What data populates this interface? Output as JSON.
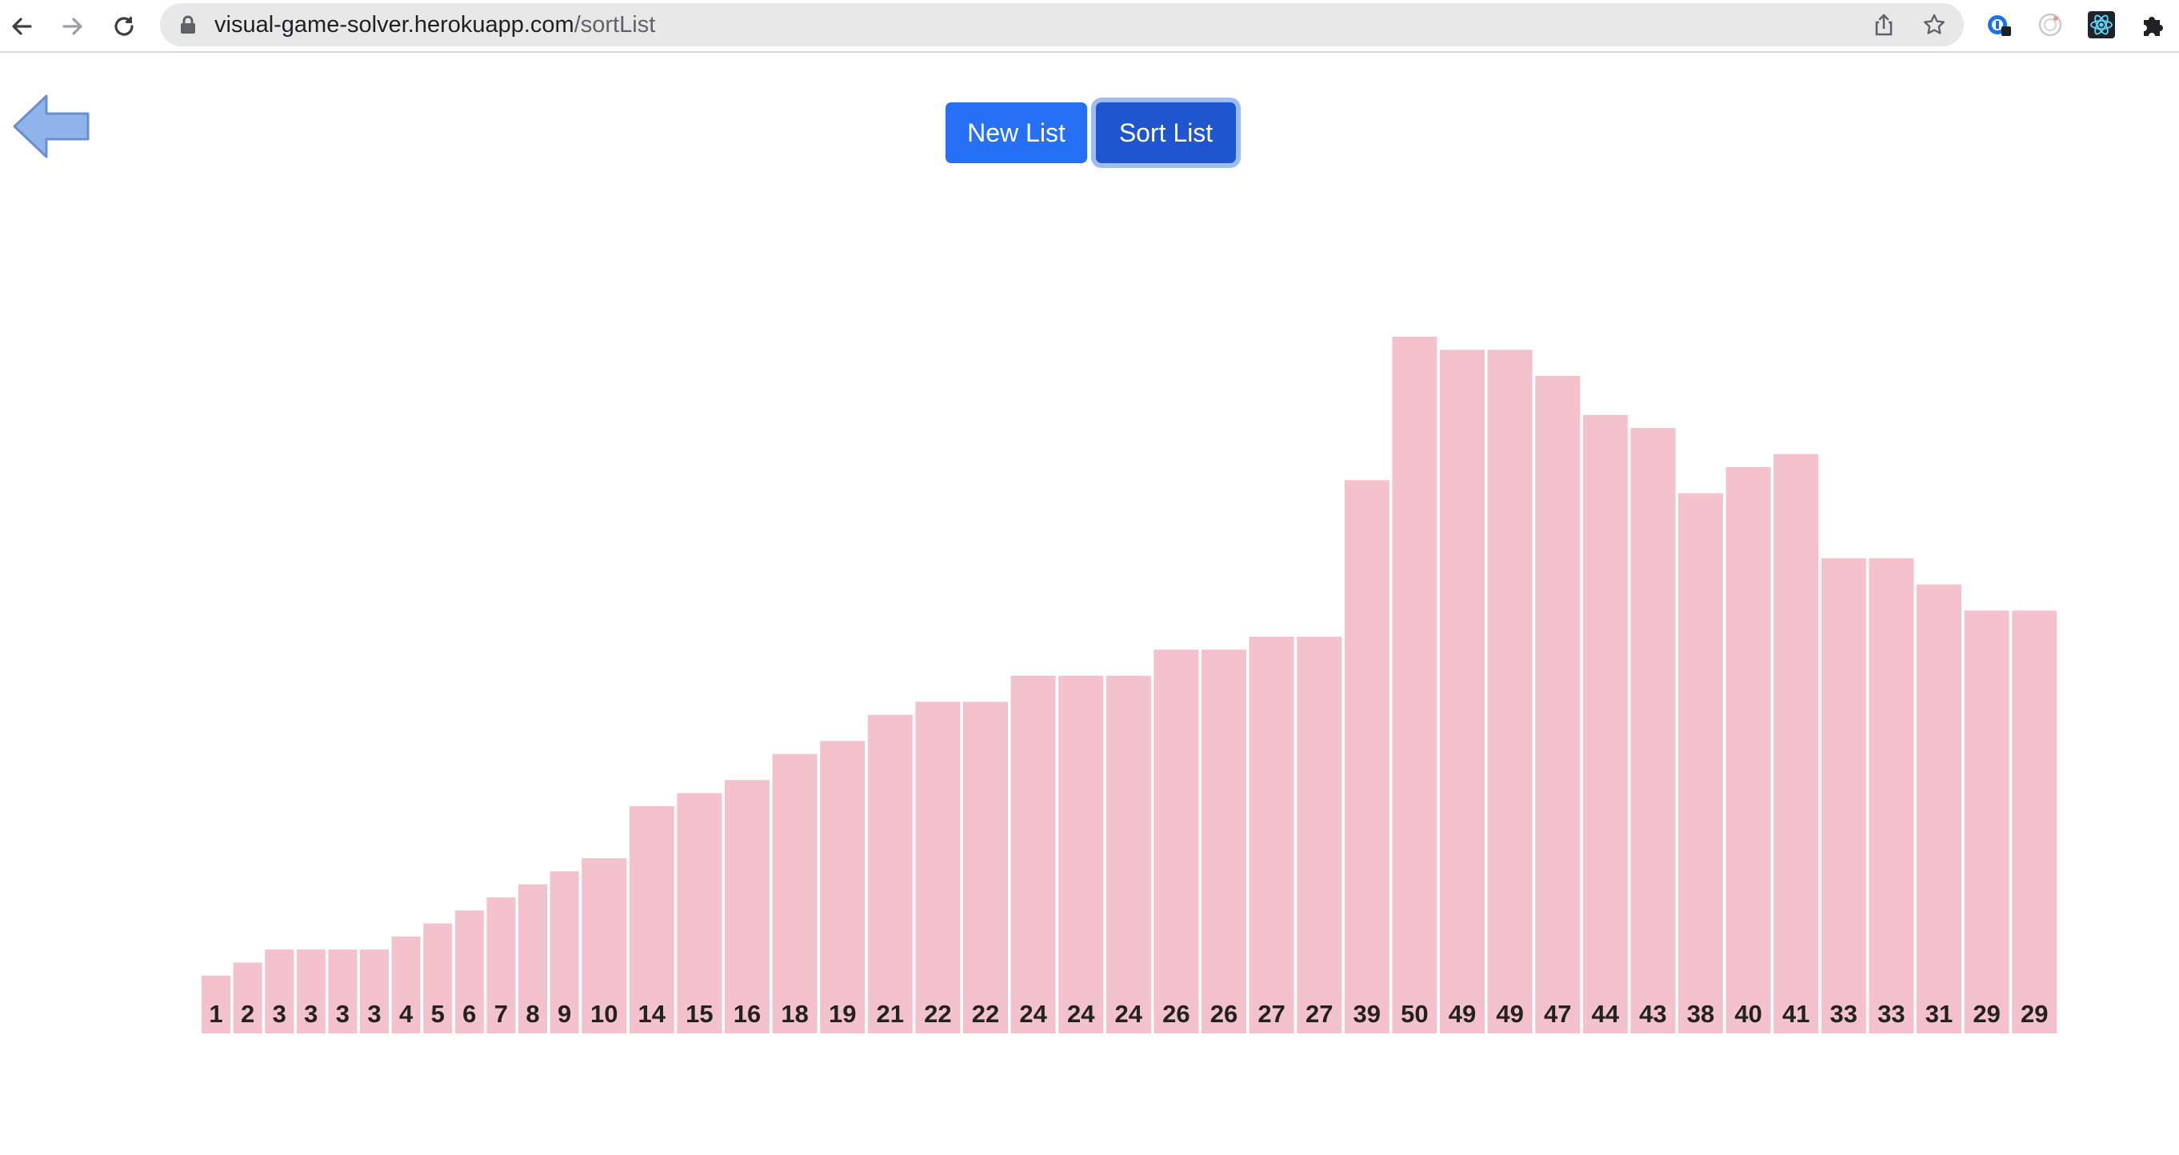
{
  "browser": {
    "url_host": "visual-game-solver.herokuapp.com",
    "url_path": "/sortList",
    "icons": [
      "back-icon",
      "forward-icon",
      "reload-icon",
      "lock-icon",
      "share-icon",
      "bookmark-star-icon",
      "extension-1password-icon",
      "extension-circle-icon",
      "extension-react-icon",
      "extensions-puzzle-icon"
    ]
  },
  "page": {
    "back_icon": "left-arrow-icon",
    "new_list_label": "New List",
    "sort_list_label": "Sort List"
  },
  "colors": {
    "bar_fill": "#f4c2cc",
    "primary_button": "#2670f5",
    "active_button": "#1f55cf",
    "back_arrow_fill": "#8fb3ea",
    "back_arrow_stroke": "#6a8fcf"
  },
  "chart_data": {
    "type": "bar",
    "values": [
      1,
      2,
      3,
      3,
      3,
      3,
      4,
      5,
      6,
      7,
      8,
      9,
      10,
      14,
      15,
      16,
      18,
      19,
      21,
      22,
      22,
      24,
      24,
      24,
      26,
      26,
      27,
      27,
      39,
      50,
      49,
      49,
      47,
      44,
      43,
      38,
      40,
      41,
      33,
      33,
      31,
      29,
      29
    ]
  }
}
